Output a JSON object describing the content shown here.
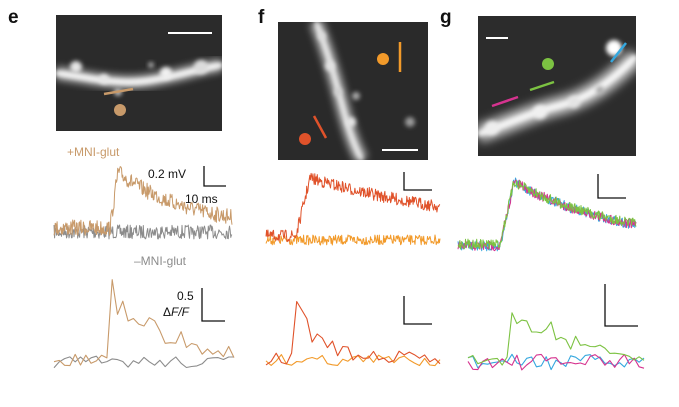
{
  "panels": [
    {
      "id": "e",
      "letter": "e"
    },
    {
      "id": "f",
      "letter": "f"
    },
    {
      "id": "g",
      "letter": "g"
    }
  ],
  "panel_e": {
    "label_plus": "+MNI-glut",
    "label_minus": "–MNI-glut",
    "scale_voltage": "0.2 mV",
    "scale_time": "10 ms",
    "scale_dff_value": "0.5",
    "scale_dff_unit_prefix": "Δ",
    "scale_dff_unit_italic": "F/F"
  },
  "colors": {
    "e_plus": "#c89a6a",
    "e_minus": "#8c8c8c",
    "f_dark": "#e0522a",
    "f_light": "#f29a2a",
    "g_green": "#7cc242",
    "g_magenta": "#d6338f",
    "g_blue": "#35a7de",
    "label_tan": "#c89a6a",
    "label_gray": "#8c8c8c"
  },
  "icons": [
    "uncaging-spot-marker",
    "linescan-bar",
    "scale-bar"
  ]
}
